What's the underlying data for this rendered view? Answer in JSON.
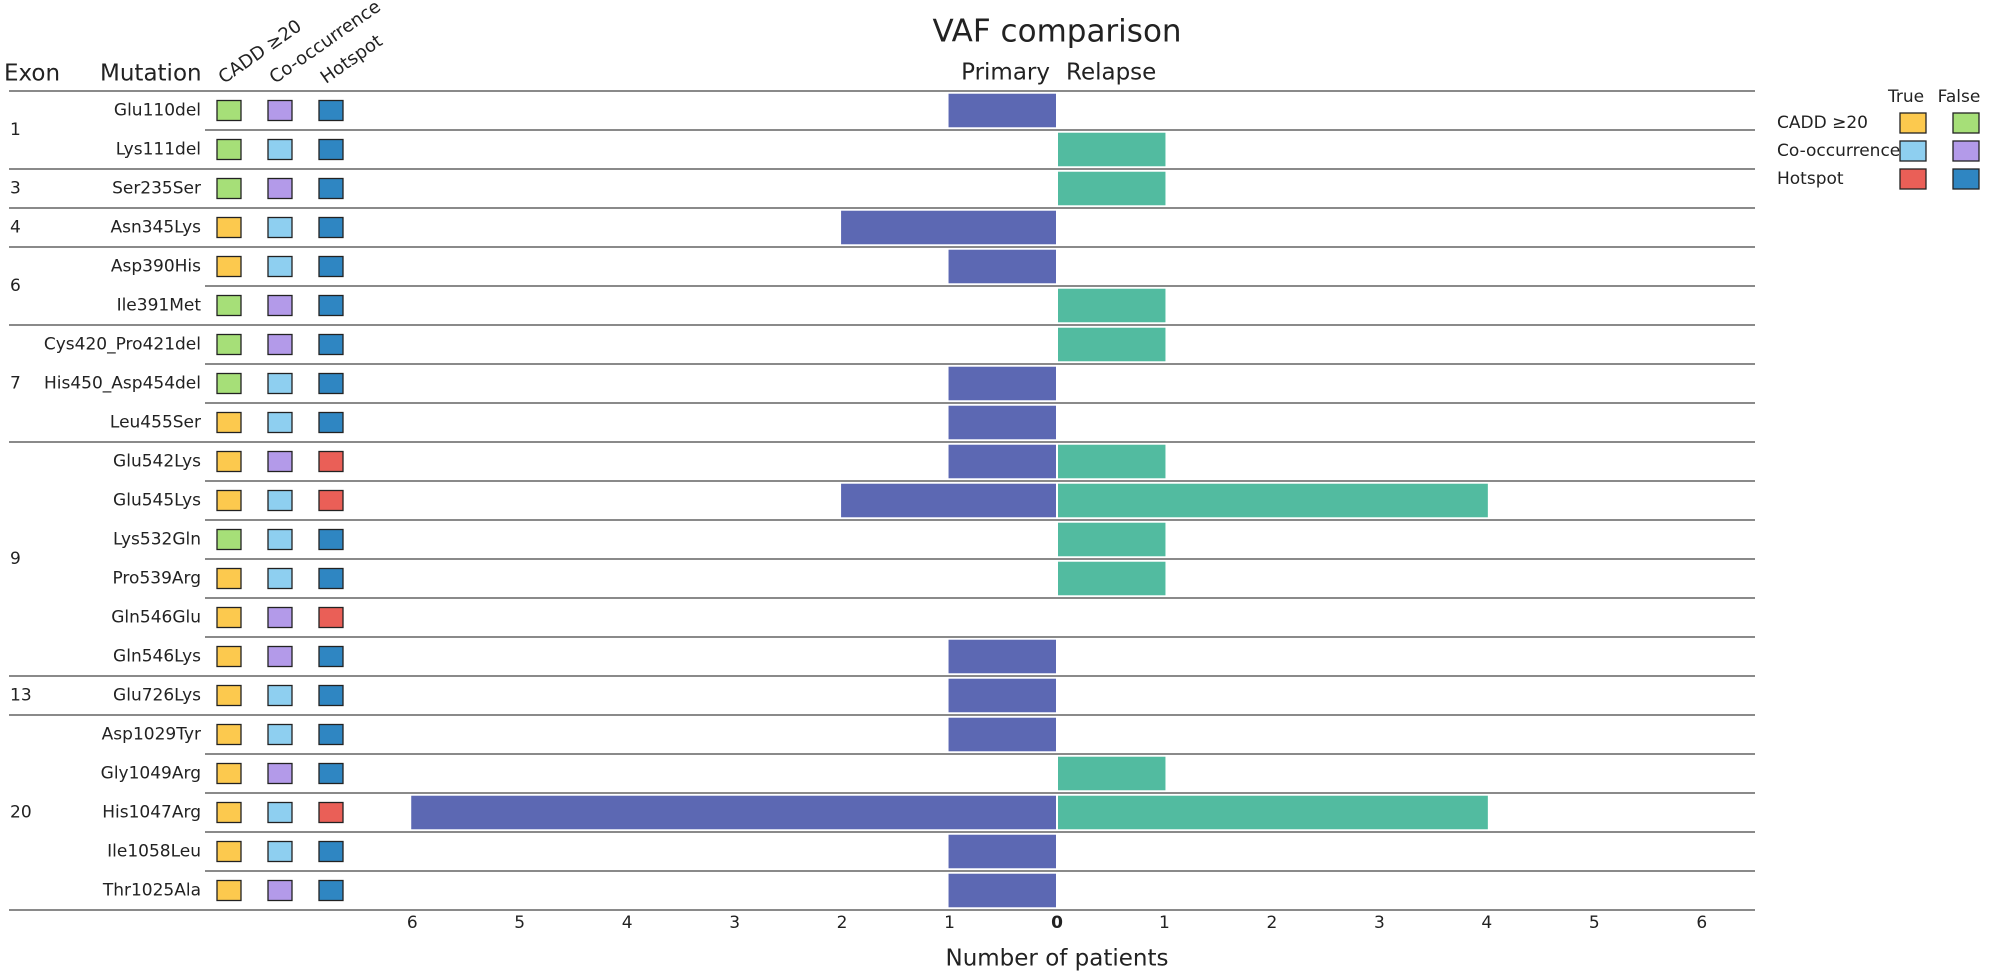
{
  "chart_data": {
    "type": "bar",
    "title": "VAF comparison",
    "x_label": "Number of patients",
    "exon_header": "Exon",
    "mutation_header": "Mutation",
    "categories": [
      "Glu110del",
      "Lys111del",
      "Ser235Ser",
      "Asn345Lys",
      "Asp390His",
      "Ile391Met",
      "Cys420_Pro421del",
      "His450_Asp454del",
      "Leu455Ser",
      "Glu542Lys",
      "Glu545Lys",
      "Lys532Gln",
      "Pro539Arg",
      "Gln546Glu",
      "Gln546Lys",
      "Glu726Lys",
      "Asp1029Tyr",
      "Gly1049Arg",
      "His1047Arg",
      "Ile1058Leu",
      "Thr1025Ala"
    ],
    "exons": [
      "1",
      "1",
      "3",
      "4",
      "6",
      "6",
      "7",
      "7",
      "7",
      "9",
      "9",
      "9",
      "9",
      "9",
      "9",
      "13",
      "20",
      "20",
      "20",
      "20",
      "20"
    ],
    "series": [
      {
        "name": "Primary",
        "color": "#5c68b3",
        "side": "left",
        "values": [
          1,
          0,
          0,
          2,
          1,
          0,
          0,
          1,
          1,
          1,
          2,
          0,
          0,
          0,
          1,
          1,
          1,
          0,
          6,
          1,
          1
        ]
      },
      {
        "name": "Relapse",
        "color": "#52bba0",
        "side": "right",
        "values": [
          0,
          1,
          1,
          0,
          0,
          1,
          1,
          0,
          0,
          1,
          4,
          1,
          1,
          0,
          0,
          0,
          0,
          1,
          4,
          0,
          0
        ]
      }
    ],
    "xlim": [
      0,
      6.5
    ],
    "xticks": [
      0,
      1,
      2,
      3,
      4,
      5,
      6
    ],
    "annotations": [
      {
        "name": "CADD ≥20",
        "true_color": "#fcc94e",
        "false_color": "#a6df78",
        "values": [
          false,
          false,
          false,
          true,
          true,
          false,
          false,
          false,
          true,
          true,
          true,
          false,
          true,
          true,
          true,
          true,
          true,
          true,
          true,
          true,
          true
        ]
      },
      {
        "name": "Co-occurrence",
        "true_color": "#8ecff0",
        "false_color": "#b39ae9",
        "values": [
          false,
          true,
          false,
          true,
          true,
          false,
          false,
          true,
          true,
          false,
          true,
          true,
          true,
          false,
          false,
          true,
          true,
          false,
          true,
          true,
          false
        ]
      },
      {
        "name": "Hotspot",
        "true_color": "#ea5f57",
        "false_color": "#2f86c2",
        "values": [
          false,
          false,
          false,
          false,
          false,
          false,
          false,
          false,
          false,
          true,
          true,
          false,
          false,
          true,
          false,
          false,
          false,
          false,
          true,
          false,
          false
        ]
      }
    ],
    "legend_true": "True",
    "legend_false": "False"
  }
}
